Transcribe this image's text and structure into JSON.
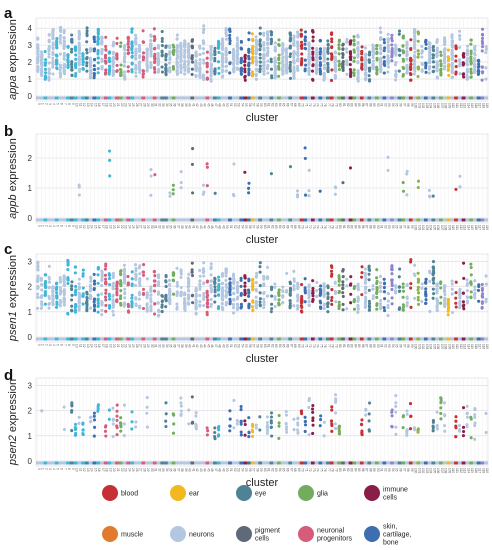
{
  "colors": {
    "blood": "#c62f34",
    "ear": "#f2b81f",
    "eye": "#4f8294",
    "glia": "#72ad5d",
    "immune": "#8b1e48",
    "muscle": "#e07b2e",
    "neurons": "#b4c7e0",
    "pigment": "#5e6a7a",
    "neuronal_progenitors": "#d65d7a",
    "skin": "#3d6eb0",
    "cyan": "#3db6d9",
    "purple": "#8f83cc",
    "green2": "#8cb447"
  },
  "cluster_count": 120,
  "chart_data": [
    {
      "type": "scatter",
      "panel": "a",
      "gene": "appa",
      "ylabel_suffix": " expression",
      "xlabel": "cluster",
      "ylim": [
        0,
        4.6
      ],
      "yticks": [
        "0",
        "1",
        "2",
        "3",
        "4"
      ],
      "ytick_values": [
        0,
        1,
        2,
        3,
        4
      ],
      "profile": "high",
      "max_value": 4.5,
      "grid": true
    },
    {
      "type": "scatter",
      "panel": "b",
      "gene": "appb",
      "ylabel_suffix": " expression",
      "xlabel": "cluster",
      "ylim": [
        0,
        2.8
      ],
      "yticks": [
        "0",
        "1",
        "2"
      ],
      "ytick_values": [
        0,
        1,
        2
      ],
      "profile": "sparse",
      "max_value": 2.6,
      "grid": true
    },
    {
      "type": "scatter",
      "panel": "c",
      "gene": "psen1",
      "ylabel_suffix": " expression",
      "xlabel": "cluster",
      "ylim": [
        0,
        3.3
      ],
      "yticks": [
        "0",
        "1",
        "2",
        "3"
      ],
      "ytick_values": [
        0,
        1,
        2,
        3
      ],
      "profile": "medium",
      "max_value": 3.2,
      "grid": true
    },
    {
      "type": "scatter",
      "panel": "d",
      "gene": "psen2",
      "ylabel_suffix": " expression",
      "xlabel": "cluster",
      "ylim": [
        0,
        3.3
      ],
      "yticks": [
        "0",
        "1",
        "2",
        "3"
      ],
      "ytick_values": [
        0,
        1,
        2,
        3
      ],
      "profile": "low",
      "max_value": 3.0,
      "grid": true
    }
  ],
  "legend": [
    {
      "key": "blood",
      "label": "blood"
    },
    {
      "key": "ear",
      "label": "ear"
    },
    {
      "key": "eye",
      "label": "eye"
    },
    {
      "key": "glia",
      "label": "glia"
    },
    {
      "key": "immune",
      "label": "immune\ncells"
    },
    {
      "key": "muscle",
      "label": "muscle"
    },
    {
      "key": "neurons",
      "label": "neurons"
    },
    {
      "key": "pigment",
      "label": "pigment\ncells"
    },
    {
      "key": "neuronal_progenitors",
      "label": "neuronal\nprogenitors"
    },
    {
      "key": "skin",
      "label": "skin,\ncartilage,\nbone"
    }
  ]
}
